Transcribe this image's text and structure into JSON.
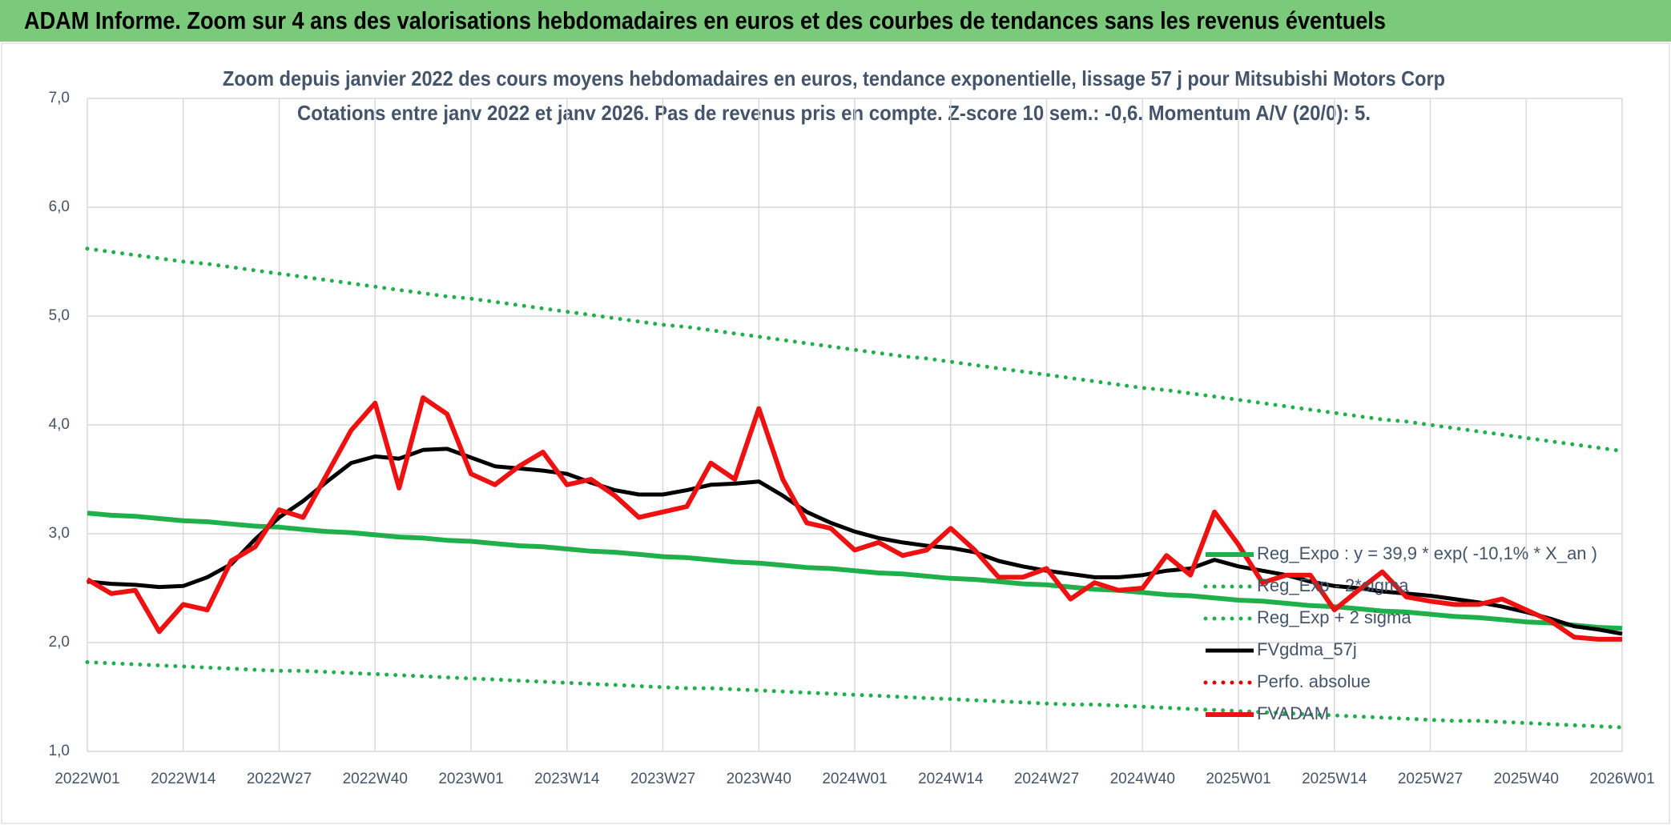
{
  "header": {
    "title": "ADAM Informe. Zoom sur 4 ans des valorisations hebdomadaires en euros et des courbes de tendances sans les revenus éventuels"
  },
  "chart_data": {
    "type": "line",
    "title": "Zoom depuis janvier 2022 des cours moyens hebdomadaires en euros, tendance exponentielle, lissage 57 j pour Mitsubishi Motors Corp",
    "subtitle": "Cotations entre janv 2022 et janv 2026. Pas de revenus pris en compte. Z-score 10 sem.: -0,6. Momentum A/V (20/0): 5.",
    "categories": [
      "2022W01",
      null,
      null,
      null,
      "2022W14",
      null,
      null,
      null,
      "2022W27",
      null,
      null,
      null,
      "2022W40",
      null,
      null,
      null,
      "2023W01",
      null,
      null,
      null,
      "2023W14",
      null,
      null,
      null,
      "2023W27",
      null,
      null,
      null,
      "2023W40",
      null,
      null,
      null,
      "2024W01",
      null,
      null,
      null,
      "2024W14",
      null,
      null,
      null,
      "2024W27",
      null,
      null,
      null,
      "2024W40",
      null,
      null,
      null,
      "2025W01",
      null,
      null,
      null,
      "2025W14",
      null,
      null,
      null,
      "2025W27",
      null,
      null,
      null,
      "2025W40",
      null,
      null,
      null,
      "2026W01"
    ],
    "ylim": [
      1,
      7
    ],
    "yticks": [
      {
        "value": 1,
        "label": "1,0"
      },
      {
        "value": 2,
        "label": "2,0"
      },
      {
        "value": 3,
        "label": "3,0"
      },
      {
        "value": 4,
        "label": "4,0"
      },
      {
        "value": 5,
        "label": "5,0"
      },
      {
        "value": 6,
        "label": "6,0"
      },
      {
        "value": 7,
        "label": "7,0"
      }
    ],
    "grid": true,
    "legend": "right",
    "series": [
      {
        "name": "Reg_Expo : y = 39,9 * exp( -10,1% *  X_an )",
        "color": "#1fb04b",
        "style": "solid",
        "values": [
          3.19,
          3.17,
          3.16,
          3.14,
          3.12,
          3.11,
          3.09,
          3.07,
          3.06,
          3.04,
          3.02,
          3.01,
          2.99,
          2.97,
          2.96,
          2.94,
          2.93,
          2.91,
          2.89,
          2.88,
          2.86,
          2.84,
          2.83,
          2.81,
          2.79,
          2.78,
          2.76,
          2.74,
          2.73,
          2.71,
          2.69,
          2.68,
          2.66,
          2.64,
          2.63,
          2.61,
          2.59,
          2.58,
          2.56,
          2.54,
          2.53,
          2.51,
          2.49,
          2.48,
          2.46,
          2.44,
          2.43,
          2.41,
          2.39,
          2.38,
          2.36,
          2.34,
          2.33,
          2.31,
          2.29,
          2.28,
          2.26,
          2.24,
          2.23,
          2.21,
          2.19,
          2.18,
          2.16,
          2.14,
          2.13
        ]
      },
      {
        "name": "Reg_Exp - 2*sigma",
        "color": "#1fb04b",
        "style": "dotted",
        "values": [
          1.82,
          1.81,
          1.8,
          1.79,
          1.78,
          1.77,
          1.76,
          1.75,
          1.74,
          1.74,
          1.73,
          1.72,
          1.71,
          1.7,
          1.69,
          1.68,
          1.67,
          1.66,
          1.65,
          1.64,
          1.63,
          1.62,
          1.61,
          1.6,
          1.59,
          1.58,
          1.58,
          1.57,
          1.56,
          1.55,
          1.54,
          1.53,
          1.52,
          1.51,
          1.5,
          1.49,
          1.48,
          1.47,
          1.46,
          1.45,
          1.44,
          1.43,
          1.43,
          1.42,
          1.41,
          1.4,
          1.39,
          1.38,
          1.37,
          1.36,
          1.35,
          1.34,
          1.33,
          1.32,
          1.31,
          1.3,
          1.29,
          1.28,
          1.28,
          1.27,
          1.26,
          1.25,
          1.24,
          1.23,
          1.22
        ]
      },
      {
        "name": "Reg_Exp + 2 sigma",
        "color": "#1fb04b",
        "style": "dotted",
        "values": [
          5.62,
          5.59,
          5.56,
          5.53,
          5.5,
          5.48,
          5.45,
          5.42,
          5.39,
          5.36,
          5.33,
          5.3,
          5.27,
          5.24,
          5.21,
          5.18,
          5.16,
          5.13,
          5.1,
          5.07,
          5.04,
          5.01,
          4.98,
          4.95,
          4.92,
          4.9,
          4.87,
          4.84,
          4.81,
          4.78,
          4.75,
          4.72,
          4.69,
          4.66,
          4.63,
          4.61,
          4.58,
          4.55,
          4.52,
          4.49,
          4.46,
          4.43,
          4.4,
          4.37,
          4.34,
          4.32,
          4.29,
          4.26,
          4.23,
          4.2,
          4.17,
          4.14,
          4.11,
          4.08,
          4.05,
          4.03,
          4.0,
          3.97,
          3.94,
          3.91,
          3.88,
          3.85,
          3.82,
          3.79,
          3.76
        ]
      },
      {
        "name": "FVgdma_57j",
        "color": "#000000",
        "style": "solid",
        "values": [
          2.56,
          2.54,
          2.53,
          2.51,
          2.52,
          2.6,
          2.72,
          2.95,
          3.15,
          3.3,
          3.48,
          3.65,
          3.71,
          3.69,
          3.77,
          3.78,
          3.7,
          3.62,
          3.6,
          3.58,
          3.55,
          3.47,
          3.4,
          3.36,
          3.36,
          3.4,
          3.45,
          3.46,
          3.48,
          3.35,
          3.2,
          3.1,
          3.02,
          2.96,
          2.92,
          2.89,
          2.87,
          2.83,
          2.75,
          2.7,
          2.66,
          2.63,
          2.6,
          2.6,
          2.62,
          2.66,
          2.68,
          2.76,
          2.7,
          2.66,
          2.62,
          2.56,
          2.52,
          2.5,
          2.47,
          2.45,
          2.43,
          2.4,
          2.37,
          2.33,
          2.28,
          2.22,
          2.15,
          2.12,
          2.08
        ]
      },
      {
        "name": "Perfo. absolue",
        "color": "#e00000",
        "style": "dotted",
        "values": [
          null,
          null,
          null,
          null,
          null,
          null,
          null,
          null,
          null,
          null,
          null,
          null,
          null,
          null,
          null,
          null,
          null,
          null,
          null,
          null,
          null,
          null,
          null,
          null,
          null,
          null,
          null,
          null,
          null,
          null,
          null,
          null,
          null,
          null,
          null,
          null,
          null,
          null,
          null,
          null,
          null,
          null,
          null,
          null,
          null,
          null,
          null,
          null,
          null,
          null,
          null,
          null,
          null,
          null,
          null,
          null,
          null,
          null,
          null,
          null,
          null,
          null,
          null,
          null,
          null
        ]
      },
      {
        "name": "FVADAM",
        "color": "#ee1111",
        "style": "solid",
        "values": [
          2.58,
          2.45,
          2.48,
          2.1,
          2.35,
          2.3,
          2.75,
          2.88,
          3.22,
          3.15,
          3.55,
          3.95,
          4.2,
          3.42,
          4.25,
          4.1,
          3.55,
          3.45,
          3.62,
          3.75,
          3.45,
          3.5,
          3.35,
          3.15,
          3.2,
          3.25,
          3.65,
          3.5,
          4.15,
          3.5,
          3.1,
          3.05,
          2.85,
          2.92,
          2.8,
          2.85,
          3.05,
          2.85,
          2.6,
          2.6,
          2.68,
          2.4,
          2.55,
          2.48,
          2.5,
          2.8,
          2.62,
          3.2,
          2.9,
          2.55,
          2.62,
          2.62,
          2.3,
          2.48,
          2.65,
          2.42,
          2.38,
          2.35,
          2.35,
          2.4,
          2.3,
          2.2,
          2.05,
          2.03,
          2.03
        ]
      }
    ]
  }
}
